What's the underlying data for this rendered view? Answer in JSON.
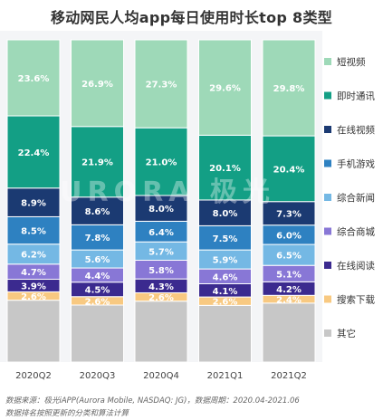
{
  "title": "移动网民人均app每日使用时长top 8类型",
  "watermark": "URORA 极光",
  "chart_data": {
    "type": "bar",
    "stacked": true,
    "percent": true,
    "categories": [
      "2020Q2",
      "2020Q3",
      "2020Q4",
      "2021Q1",
      "2021Q2"
    ],
    "series": [
      {
        "name": "其它",
        "color": "#c7c7c7",
        "values": [
          null,
          null,
          null,
          null,
          null
        ],
        "labels": [
          "",
          "",
          "",
          "",
          ""
        ]
      },
      {
        "name": "搜索下载",
        "color": "#f8c981",
        "values": [
          2.6,
          2.6,
          2.6,
          2.6,
          2.4
        ],
        "labels": [
          "2.6%",
          "2.6%",
          "2.6%",
          "2.6%",
          "2.4%"
        ]
      },
      {
        "name": "在线阅读",
        "color": "#3b2a8f",
        "values": [
          3.9,
          4.5,
          4.3,
          4.1,
          4.2
        ],
        "labels": [
          "3.9%",
          "4.5%",
          "4.3%",
          "4.1%",
          "4.2%"
        ]
      },
      {
        "name": "综合商城",
        "color": "#8877d6",
        "values": [
          4.7,
          4.4,
          5.8,
          4.6,
          5.1
        ],
        "labels": [
          "4.7%",
          "4.4%",
          "5.8%",
          "4.6%",
          "5.1%"
        ]
      },
      {
        "name": "综合新闻",
        "color": "#74b8e4",
        "values": [
          6.2,
          5.6,
          5.7,
          5.9,
          6.5
        ],
        "labels": [
          "6.2%",
          "5.6%",
          "5.7%",
          "5.9%",
          "6.5%"
        ]
      },
      {
        "name": "手机游戏",
        "color": "#2e81c1",
        "values": [
          8.5,
          7.8,
          6.4,
          7.5,
          6.0
        ],
        "labels": [
          "8.5%",
          "7.8%",
          "6.4%",
          "7.5%",
          "6.0%"
        ]
      },
      {
        "name": "在线视频",
        "color": "#1b3a72",
        "values": [
          8.9,
          8.6,
          8.0,
          8.0,
          7.3
        ],
        "labels": [
          "8.9%",
          "8.6%",
          "8.0%",
          "8.0%",
          "7.3%"
        ]
      },
      {
        "name": "即时通讯",
        "color": "#139f85",
        "values": [
          22.4,
          21.9,
          21.0,
          20.1,
          20.4
        ],
        "labels": [
          "22.4%",
          "21.9%",
          "21.0%",
          "20.1%",
          "20.4%"
        ]
      },
      {
        "name": "短视频",
        "color": "#9ed9b8",
        "values": [
          23.6,
          26.9,
          27.3,
          29.6,
          29.8
        ],
        "labels": [
          "23.6%",
          "26.9%",
          "27.3%",
          "29.6%",
          "29.8%"
        ]
      }
    ],
    "legend": [
      "短视频",
      "即时通讯",
      "在线视频",
      "手机游戏",
      "综合新闻",
      "综合商城",
      "在线阅读",
      "搜索下载",
      "其它"
    ],
    "legend_position": "right",
    "ylim": [
      0,
      100
    ],
    "grid": false
  },
  "footer": {
    "source": "数据来源：极光iAPP(Aurora Mobile, NASDAQ: JG)，数据周期：2020.04-2021.06",
    "note": "数据排名按照更新的分类和算法计算"
  }
}
